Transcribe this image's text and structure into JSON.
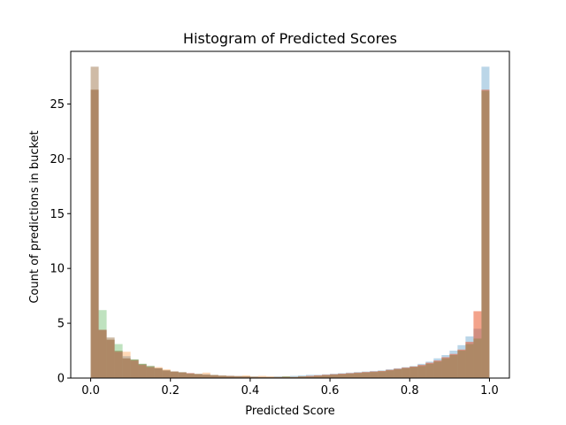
{
  "chart_data": {
    "type": "histogram",
    "title": "Histogram of Predicted Scores",
    "xlabel": "Predicted Score",
    "ylabel": "Count of predictions in bucket",
    "xlim": [
      -0.05,
      1.05
    ],
    "ylim": [
      0,
      29.8
    ],
    "xticks": [
      "0.0",
      "0.2",
      "0.4",
      "0.6",
      "0.8",
      "1.0"
    ],
    "xtick_values": [
      0,
      0.2,
      0.4,
      0.6,
      0.8,
      1.0
    ],
    "yticks": [
      "0",
      "5",
      "10",
      "15",
      "20",
      "25"
    ],
    "ytick_values": [
      0,
      5,
      10,
      15,
      20,
      25
    ],
    "grid": false,
    "legend": false,
    "bin_width": 0.02,
    "bin_start": 0.0,
    "series": [
      {
        "color": "#1f77b4",
        "alpha": 0.3,
        "values": [
          28.4,
          4.4,
          3.7,
          2.5,
          2.0,
          1.7,
          1.3,
          1.1,
          0.9,
          0.7,
          0.6,
          0.55,
          0.45,
          0.4,
          0.35,
          0.3,
          0.25,
          0.2,
          0.2,
          0.15,
          0.15,
          0.1,
          0.1,
          0.15,
          0.15,
          0.2,
          0.25,
          0.3,
          0.3,
          0.35,
          0.4,
          0.45,
          0.5,
          0.55,
          0.6,
          0.65,
          0.7,
          0.8,
          0.9,
          1.0,
          1.1,
          1.3,
          1.5,
          1.8,
          2.1,
          2.5,
          3.0,
          3.8,
          4.5,
          28.4
        ]
      },
      {
        "color": "#ff7f0e",
        "alpha": 0.3,
        "values": [
          28.4,
          4.4,
          3.7,
          2.5,
          2.4,
          1.7,
          1.3,
          1.1,
          1.0,
          0.8,
          0.6,
          0.55,
          0.45,
          0.4,
          0.5,
          0.3,
          0.25,
          0.2,
          0.2,
          0.25,
          0.15,
          0.2,
          0.15,
          0.1,
          0.15,
          0.1,
          0.15,
          0.2,
          0.25,
          0.3,
          0.35,
          0.4,
          0.45,
          0.5,
          0.55,
          0.6,
          0.65,
          0.75,
          0.85,
          0.95,
          1.05,
          1.2,
          1.4,
          1.6,
          1.9,
          2.2,
          2.6,
          3.3,
          6.1,
          26.3
        ]
      },
      {
        "color": "#2ca02c",
        "alpha": 0.3,
        "values": [
          26.3,
          6.2,
          3.5,
          3.1,
          1.8,
          1.7,
          1.3,
          1.1,
          0.9,
          0.7,
          0.6,
          0.5,
          0.4,
          0.35,
          0.3,
          0.25,
          0.2,
          0.2,
          0.15,
          0.15,
          0.1,
          0.1,
          0.1,
          0.1,
          0.15,
          0.1,
          0.15,
          0.15,
          0.2,
          0.25,
          0.3,
          0.35,
          0.4,
          0.45,
          0.5,
          0.55,
          0.6,
          0.7,
          0.8,
          0.9,
          1.0,
          1.1,
          1.3,
          1.5,
          1.8,
          2.1,
          2.5,
          3.1,
          3.6,
          26.2
        ]
      },
      {
        "color": "#d62728",
        "alpha": 0.3,
        "values": [
          26.3,
          4.4,
          3.5,
          2.4,
          1.8,
          1.6,
          1.2,
          1.0,
          0.9,
          0.7,
          0.6,
          0.5,
          0.45,
          0.35,
          0.3,
          0.25,
          0.2,
          0.2,
          0.15,
          0.15,
          0.1,
          0.1,
          0.1,
          0.1,
          0.1,
          0.1,
          0.15,
          0.2,
          0.25,
          0.3,
          0.35,
          0.4,
          0.45,
          0.5,
          0.55,
          0.6,
          0.65,
          0.75,
          0.85,
          0.95,
          1.05,
          1.2,
          1.4,
          1.6,
          1.9,
          2.2,
          2.6,
          3.3,
          6.1,
          26.3
        ]
      }
    ]
  }
}
